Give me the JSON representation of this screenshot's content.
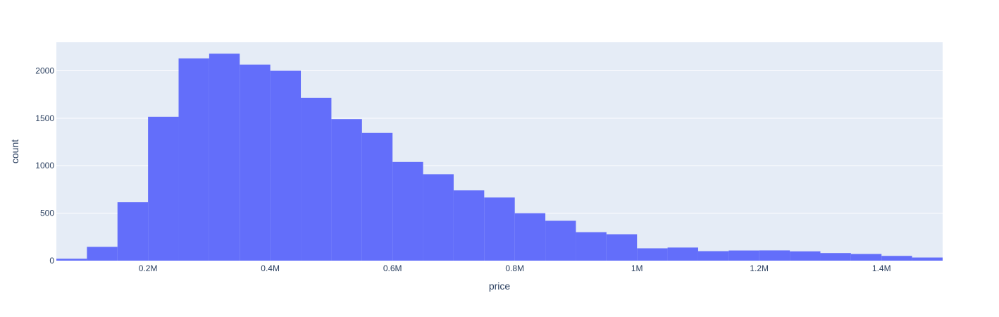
{
  "chart_data": {
    "type": "bar",
    "subtype": "histogram",
    "xlabel": "price",
    "ylabel": "count",
    "xlim": [
      50000,
      1500000
    ],
    "ylim": [
      0,
      2300
    ],
    "bin_width": 50000,
    "x_ticks": [
      {
        "value": 200000,
        "label": "0.2M"
      },
      {
        "value": 400000,
        "label": "0.4M"
      },
      {
        "value": 600000,
        "label": "0.6M"
      },
      {
        "value": 800000,
        "label": "0.8M"
      },
      {
        "value": 1000000,
        "label": "1M"
      },
      {
        "value": 1200000,
        "label": "1.2M"
      },
      {
        "value": 1400000,
        "label": "1.4M"
      }
    ],
    "y_ticks": [
      {
        "value": 0,
        "label": "0"
      },
      {
        "value": 500,
        "label": "500"
      },
      {
        "value": 1000,
        "label": "1000"
      },
      {
        "value": 1500,
        "label": "1500"
      },
      {
        "value": 2000,
        "label": "2000"
      }
    ],
    "bins": [
      {
        "start": 50000,
        "end": 100000,
        "count": 20
      },
      {
        "start": 100000,
        "end": 150000,
        "count": 145
      },
      {
        "start": 150000,
        "end": 200000,
        "count": 615
      },
      {
        "start": 200000,
        "end": 250000,
        "count": 1515
      },
      {
        "start": 250000,
        "end": 300000,
        "count": 2130
      },
      {
        "start": 300000,
        "end": 350000,
        "count": 2180
      },
      {
        "start": 350000,
        "end": 400000,
        "count": 2065
      },
      {
        "start": 400000,
        "end": 450000,
        "count": 2000
      },
      {
        "start": 450000,
        "end": 500000,
        "count": 1715
      },
      {
        "start": 500000,
        "end": 550000,
        "count": 1490
      },
      {
        "start": 550000,
        "end": 600000,
        "count": 1345
      },
      {
        "start": 600000,
        "end": 650000,
        "count": 1040
      },
      {
        "start": 650000,
        "end": 700000,
        "count": 910
      },
      {
        "start": 700000,
        "end": 750000,
        "count": 740
      },
      {
        "start": 750000,
        "end": 800000,
        "count": 665
      },
      {
        "start": 800000,
        "end": 850000,
        "count": 500
      },
      {
        "start": 850000,
        "end": 900000,
        "count": 420
      },
      {
        "start": 900000,
        "end": 950000,
        "count": 300
      },
      {
        "start": 950000,
        "end": 1000000,
        "count": 278
      },
      {
        "start": 1000000,
        "end": 1050000,
        "count": 130
      },
      {
        "start": 1050000,
        "end": 1100000,
        "count": 138
      },
      {
        "start": 1100000,
        "end": 1150000,
        "count": 100
      },
      {
        "start": 1150000,
        "end": 1200000,
        "count": 107
      },
      {
        "start": 1200000,
        "end": 1250000,
        "count": 108
      },
      {
        "start": 1250000,
        "end": 1300000,
        "count": 98
      },
      {
        "start": 1300000,
        "end": 1350000,
        "count": 80
      },
      {
        "start": 1350000,
        "end": 1400000,
        "count": 70
      },
      {
        "start": 1400000,
        "end": 1450000,
        "count": 50
      },
      {
        "start": 1450000,
        "end": 1500000,
        "count": 33
      }
    ],
    "grid": true,
    "legend": false,
    "colors": {
      "bar": "#636efa",
      "plot_bg": "#e5ecf6",
      "grid": "#ffffff",
      "text": "#2a3f5f"
    }
  }
}
